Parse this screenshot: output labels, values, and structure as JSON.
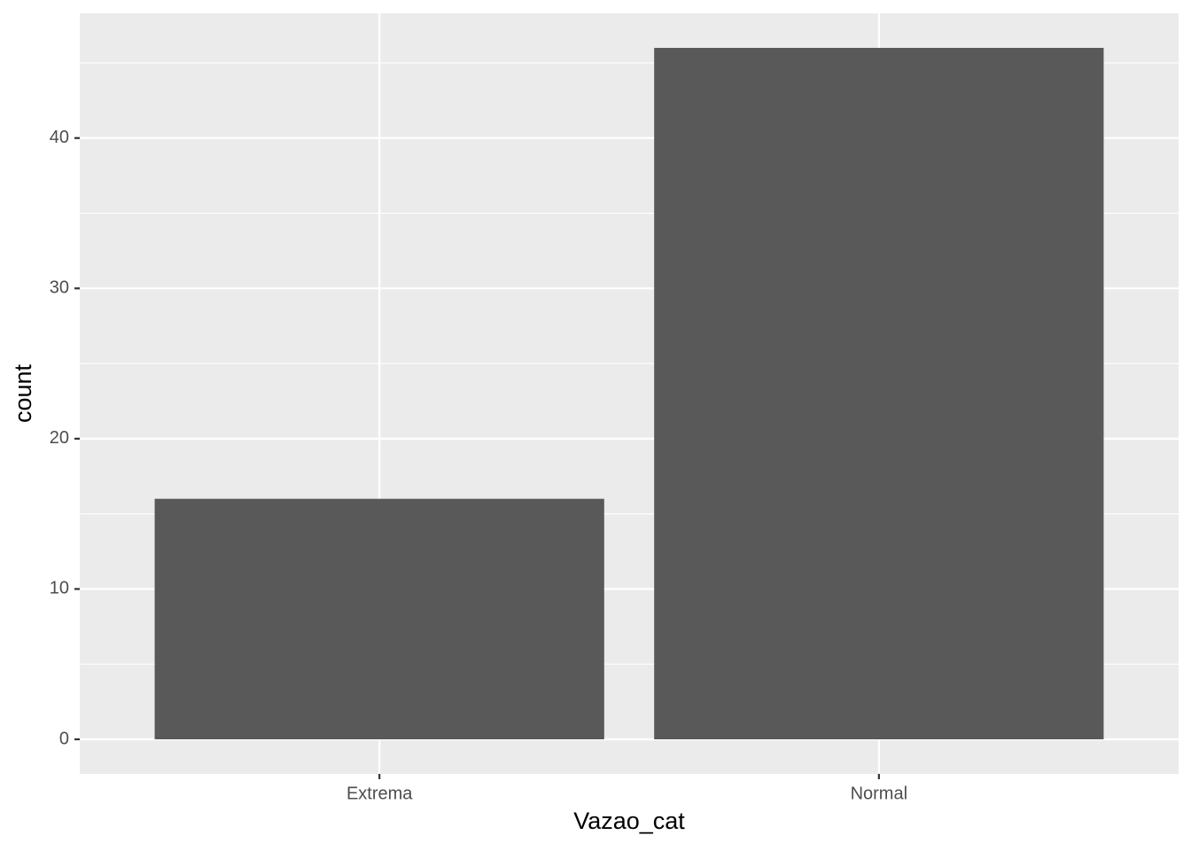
{
  "chart_data": {
    "type": "bar",
    "x_label": "Vazao_cat",
    "y_label": "count",
    "categories": [
      "Extrema",
      "Normal"
    ],
    "values": [
      16,
      46
    ],
    "color": "#595959",
    "ylim": [
      -2.3,
      48.3
    ],
    "yticks": [
      0,
      10,
      20,
      30,
      40
    ],
    "grid": true
  }
}
